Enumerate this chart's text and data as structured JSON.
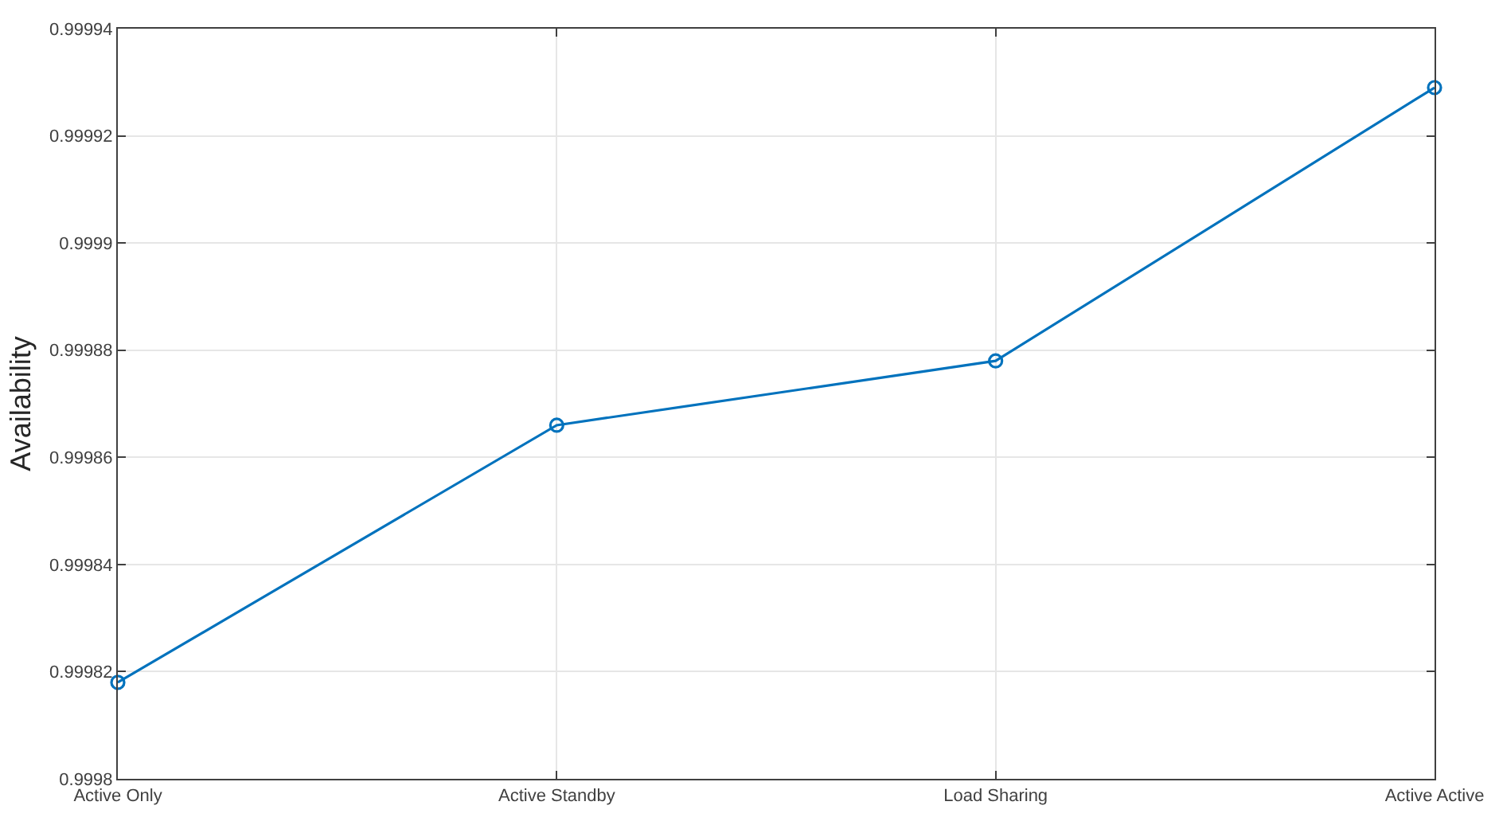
{
  "chart_data": {
    "type": "line",
    "ylabel": "Availability",
    "categories": [
      "Active Only",
      "Active Standby",
      "Load Sharing",
      "Active Active"
    ],
    "series": [
      {
        "color": "#0072bd",
        "values": [
          0.999818,
          0.999866,
          0.999878,
          0.999929
        ]
      }
    ],
    "ylim": [
      0.9998,
      0.99994
    ],
    "yticks": [
      0.9998,
      0.99982,
      0.99984,
      0.99986,
      0.99988,
      0.9999,
      0.99992,
      0.99994
    ],
    "grid": true,
    "marker": "circle",
    "line_style": "solid"
  }
}
